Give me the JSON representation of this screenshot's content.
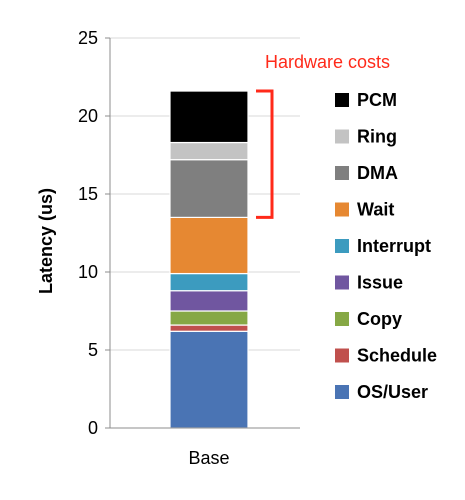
{
  "chart_data": {
    "type": "bar",
    "stacked": true,
    "categories": [
      "Base"
    ],
    "ylabel": "Latency (us)",
    "xlabel": "",
    "ylim": [
      0,
      25
    ],
    "yticks": [
      0,
      5,
      10,
      15,
      20,
      25
    ],
    "grid": true,
    "legend_position": "right",
    "series": [
      {
        "name": "OS/User",
        "values": [
          6.2
        ],
        "color": "#4a74b4"
      },
      {
        "name": "Schedule",
        "values": [
          0.4
        ],
        "color": "#c0504d"
      },
      {
        "name": "Copy",
        "values": [
          0.9
        ],
        "color": "#86a845"
      },
      {
        "name": "Issue",
        "values": [
          1.3
        ],
        "color": "#7056a0"
      },
      {
        "name": "Interrupt",
        "values": [
          1.1
        ],
        "color": "#3c9bbf"
      },
      {
        "name": "Wait",
        "values": [
          3.6
        ],
        "color": "#e68832"
      },
      {
        "name": "DMA",
        "values": [
          3.7
        ],
        "color": "#7f7f7f"
      },
      {
        "name": "Ring",
        "values": [
          1.1
        ],
        "color": "#c3c3c3"
      },
      {
        "name": "PCM",
        "values": [
          3.3
        ],
        "color": "#000000"
      }
    ],
    "annotations": [
      {
        "text": "Hardware costs",
        "color": "#ff2a1a",
        "bracket_from": 13.5,
        "bracket_to": 21.6
      }
    ]
  }
}
